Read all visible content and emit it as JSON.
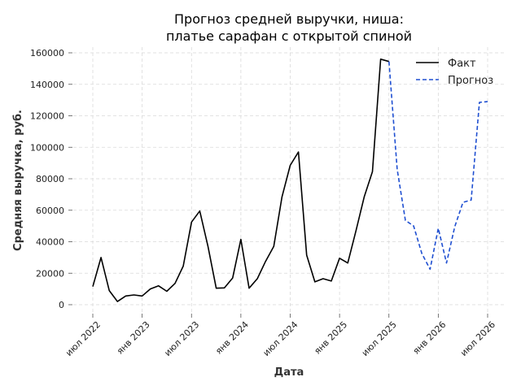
{
  "chart_data": {
    "type": "line",
    "title_lines": [
      "Прогноз средней выручки, ниша:",
      "платье сарафан с открытой спиной"
    ],
    "xlabel": "Дата",
    "ylabel": "Средняя выручка, руб.",
    "ylim": [
      0,
      160000
    ],
    "y_ticks": [
      0,
      20000,
      40000,
      60000,
      80000,
      100000,
      120000,
      140000,
      160000
    ],
    "y_tick_labels": [
      "0",
      "20000",
      "40000",
      "60000",
      "80000",
      "100000",
      "120000",
      "140000",
      "160000"
    ],
    "x_ticks": [
      {
        "date": "2022-07",
        "label": "июл 2022"
      },
      {
        "date": "2023-01",
        "label": "янв 2023"
      },
      {
        "date": "2023-07",
        "label": "июл 2023"
      },
      {
        "date": "2024-01",
        "label": "янв 2024"
      },
      {
        "date": "2024-07",
        "label": "июл 2024"
      },
      {
        "date": "2025-01",
        "label": "янв 2025"
      },
      {
        "date": "2025-07",
        "label": "июл 2025"
      },
      {
        "date": "2026-01",
        "label": "янв 2026"
      },
      {
        "date": "2026-07",
        "label": "июл 2026"
      }
    ],
    "grid": true,
    "legend_position": "top-right",
    "series": [
      {
        "name": "Факт",
        "color": "#000000",
        "style": "solid",
        "points": [
          [
            "2022-07",
            11500
          ],
          [
            "2022-08",
            30000
          ],
          [
            "2022-09",
            9000
          ],
          [
            "2022-10",
            2000
          ],
          [
            "2022-11",
            5500
          ],
          [
            "2022-12",
            6200
          ],
          [
            "2023-01",
            5500
          ],
          [
            "2023-02",
            10000
          ],
          [
            "2023-03",
            12000
          ],
          [
            "2023-04",
            8500
          ],
          [
            "2023-05",
            13500
          ],
          [
            "2023-06",
            24500
          ],
          [
            "2023-07",
            52500
          ],
          [
            "2023-08",
            59500
          ],
          [
            "2023-09",
            37000
          ],
          [
            "2023-10",
            10500
          ],
          [
            "2023-11",
            10700
          ],
          [
            "2023-12",
            17000
          ],
          [
            "2024-01",
            41500
          ],
          [
            "2024-02",
            10500
          ],
          [
            "2024-03",
            16500
          ],
          [
            "2024-04",
            27500
          ],
          [
            "2024-05",
            37000
          ],
          [
            "2024-06",
            68500
          ],
          [
            "2024-07",
            88500
          ],
          [
            "2024-08",
            97000
          ],
          [
            "2024-09",
            31500
          ],
          [
            "2024-10",
            14500
          ],
          [
            "2024-11",
            16500
          ],
          [
            "2024-12",
            15000
          ],
          [
            "2025-01",
            29500
          ],
          [
            "2025-02",
            26500
          ],
          [
            "2025-03",
            47000
          ],
          [
            "2025-04",
            68500
          ],
          [
            "2025-05",
            84500
          ],
          [
            "2025-06",
            156000
          ],
          [
            "2025-07",
            154500
          ]
        ]
      },
      {
        "name": "Прогноз",
        "color": "#1f4fd1",
        "style": "dashed",
        "points": [
          [
            "2025-07",
            154500
          ],
          [
            "2025-08",
            86000
          ],
          [
            "2025-09",
            53500
          ],
          [
            "2025-10",
            50000
          ],
          [
            "2025-11",
            32500
          ],
          [
            "2025-12",
            22500
          ],
          [
            "2026-01",
            48500
          ],
          [
            "2026-02",
            26500
          ],
          [
            "2026-03",
            49500
          ],
          [
            "2026-04",
            65000
          ],
          [
            "2026-05",
            66500
          ],
          [
            "2026-06",
            128500
          ],
          [
            "2026-07",
            129000
          ]
        ]
      }
    ]
  }
}
